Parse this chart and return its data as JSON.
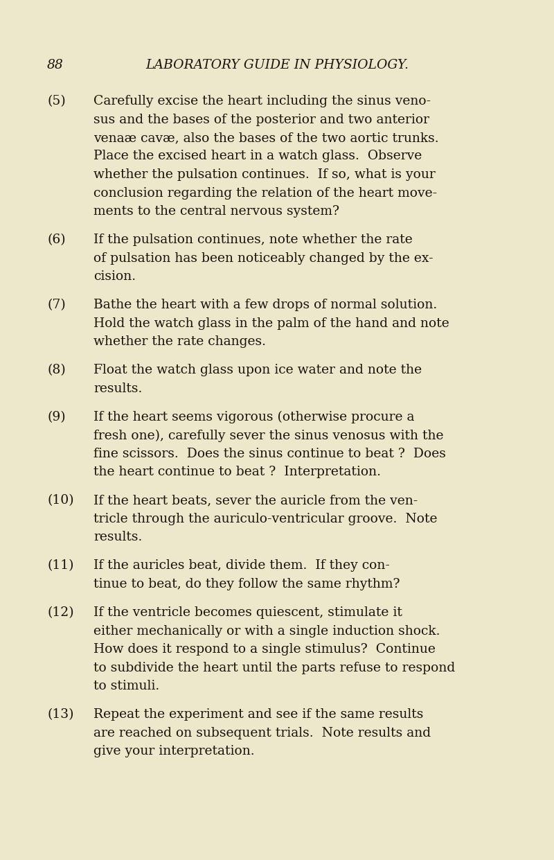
{
  "background_color": "#ede8cc",
  "page_number": "88",
  "header": "LABORATORY GUIDE IN PHYSIOLOGY.",
  "header_font_size": 13.5,
  "body_font_size": 13.5,
  "text_color": "#1c1208",
  "paragraphs_display": [
    {
      "number": "(5)",
      "lines": [
        "Carefully excise the heart including the sinus veno-",
        "sus and the bases of the posterior and two anterior",
        "venaæ cavæ, also the bases of the two aortic trunks.",
        "Place the excised heart in a watch glass.  Observe",
        "whether the pulsation continues.  If so, what is your",
        "conclusion regarding the relation of the heart move-",
        "ments to the central nervous system?"
      ]
    },
    {
      "number": "(6)",
      "lines": [
        "If the pulsation continues, note whether the rate",
        "of pulsation has been noticeably changed by the ex-",
        "cision."
      ]
    },
    {
      "number": "(7)",
      "lines": [
        "Bathe the heart with a few drops of normal solution.",
        "Hold the watch glass in the palm of the hand and note",
        "whether the rate changes."
      ]
    },
    {
      "number": "(8)",
      "lines": [
        "Float the watch glass upon ice water and note the",
        "results."
      ]
    },
    {
      "number": "(9)",
      "lines": [
        "If the heart seems vigorous (otherwise procure a",
        "fresh one), carefully sever the sinus venosus with the",
        "fine scissors.  Does the sinus continue to beat ?  Does",
        "the heart continue to beat ?  Interpretation."
      ]
    },
    {
      "number": "(10)",
      "lines": [
        "If the heart beats, sever the auricle from the ven-",
        "tricle through the auriculo-ventricular groove.  Note",
        "results."
      ]
    },
    {
      "number": "(11)",
      "lines": [
        "If the auricles beat, divide them.  If they con-",
        "tinue to beat, do they follow the same rhythm?"
      ]
    },
    {
      "number": "(12)",
      "lines": [
        "If the ventricle becomes quiescent, stimulate it",
        "either mechanically or with a single induction shock.",
        "How does it respond to a single stimulus?  Continue",
        "to subdivide the heart until the parts refuse to respond",
        "to stimuli."
      ]
    },
    {
      "number": "(13)",
      "lines": [
        "Repeat the experiment and see if the same results",
        "are reached on subsequent trials.  Note results and",
        "give your interpretation."
      ]
    }
  ]
}
